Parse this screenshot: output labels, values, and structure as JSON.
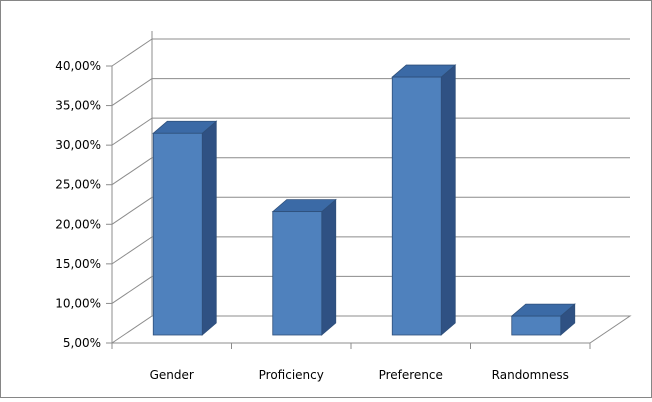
{
  "chart_data": {
    "type": "bar",
    "style": "3d-column",
    "title": "",
    "xlabel": "",
    "ylabel": "",
    "categories": [
      "Gender",
      "Proficiency",
      "Preference",
      "Randomness"
    ],
    "values": [
      31.5,
      21.6,
      38.6,
      8.4
    ],
    "yticks": [
      "5,00%",
      "10,00%",
      "15,00%",
      "20,00%",
      "25,00%",
      "30,00%",
      "35,00%",
      "40,00%"
    ],
    "ylim": [
      5,
      40
    ],
    "grid": true,
    "legend": "none",
    "colors": {
      "bar_front": "#4f81bd",
      "bar_side": "#2f5183",
      "bar_top": "#3b6aa6",
      "bar_edge": "#2e4f7a",
      "grid": "#8c8c8c"
    }
  }
}
